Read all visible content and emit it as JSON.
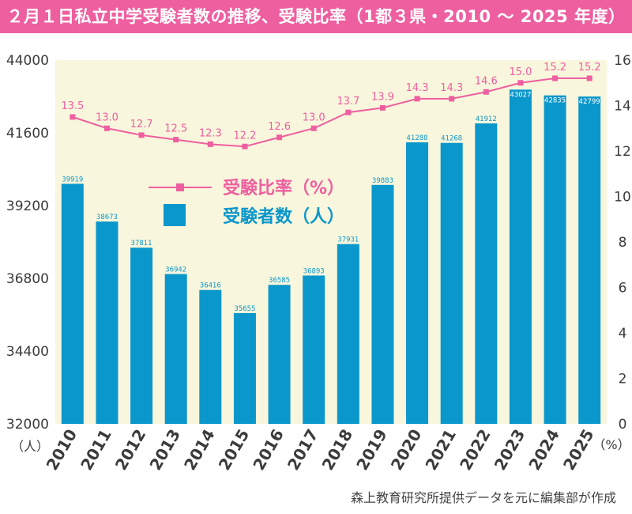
{
  "title": "２月１日私立中学受験者数の推移、受験比率（1都３県・2010 ～ 2025 年度）",
  "source": "森上教育研究所提供データを元に編集部が作成",
  "colors": {
    "title_bg": "#ee5fa0",
    "plot_bg": "#f8f6dc",
    "bar": "#0a97cc",
    "line": "#ee5fa0",
    "axis_text": "#3b3b3b"
  },
  "chart_data": {
    "type": "bar",
    "title": "２月１日私立中学受験者数の推移、受験比率（1都３県・2010 ～ 2025 年度）",
    "categories": [
      "2010",
      "2011",
      "2012",
      "2013",
      "2014",
      "2015",
      "2016",
      "2017",
      "2018",
      "2019",
      "2020",
      "2021",
      "2022",
      "2023",
      "2024",
      "2025"
    ],
    "series": [
      {
        "name": "受験者数（人）",
        "kind": "bar",
        "axis": "left",
        "values": [
          39919,
          38673,
          37811,
          36942,
          36416,
          35655,
          36585,
          36893,
          37931,
          39883,
          41288,
          41268,
          41912,
          43027,
          42835,
          42799
        ]
      },
      {
        "name": "受験比率（%）",
        "kind": "line",
        "axis": "right",
        "values": [
          13.5,
          13.0,
          12.7,
          12.5,
          12.3,
          12.2,
          12.6,
          13.0,
          13.7,
          13.9,
          14.3,
          14.3,
          14.6,
          15.0,
          15.2,
          15.2
        ]
      }
    ],
    "y_left": {
      "min": 32000,
      "max": 44000,
      "ticks": [
        32000,
        34400,
        36800,
        39200,
        41600,
        44000
      ],
      "unit": "（人）"
    },
    "y_right": {
      "min": 0,
      "max": 16,
      "ticks": [
        0,
        2,
        4,
        6,
        8,
        10,
        12,
        14,
        16
      ],
      "unit": "（%）"
    },
    "legend": {
      "position": "center-left",
      "items": [
        {
          "label": "受験比率（%）",
          "kind": "line"
        },
        {
          "label": "受験者数（人）",
          "kind": "bar"
        }
      ]
    },
    "grid": false
  }
}
